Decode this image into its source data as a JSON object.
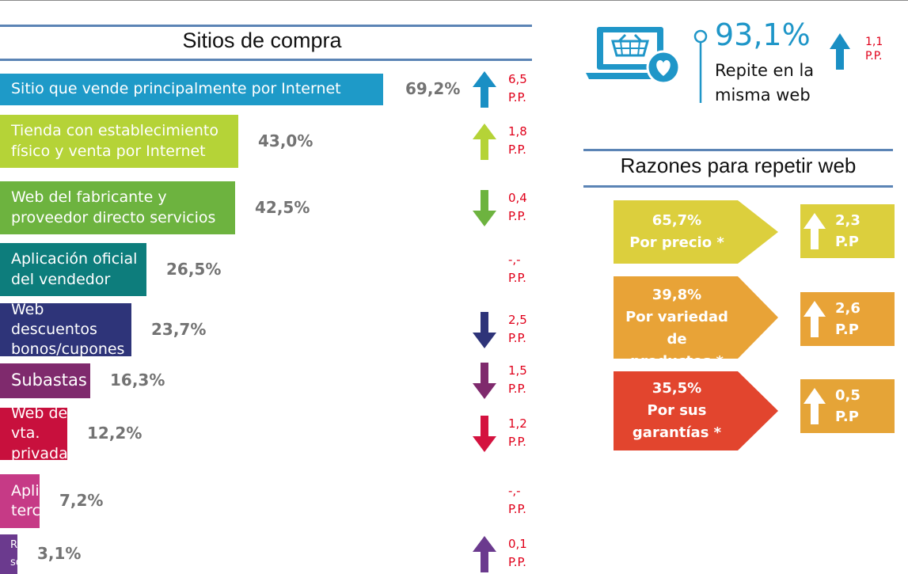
{
  "left_title": "Sitios de compra",
  "right_stat": {
    "value": "93,1%",
    "label_line1": "Repite en la",
    "label_line2": "misma web",
    "change_line1": "1,1",
    "change_line2": "P.P.",
    "icon": "laptop-shopping-heart-icon"
  },
  "reasons_title": "Razones para repetir web",
  "colors": {
    "rule": "#5b84b5",
    "change_text": "#e0001a",
    "pct_text": "#737373",
    "stat_accent": "#1f96c8"
  },
  "chart_data": [
    {
      "type": "bar",
      "orientation": "horizontal",
      "title": "Sitios de compra",
      "categories": [
        "Sitio que vende principalmente por Internet",
        "Tienda con establecimiento\nfísico y venta por Internet",
        "Web del fabricante y\nproveedor directo servicios",
        "Aplicación oficial\ndel vendedor",
        "Web descuentos\nbonos/cupones",
        "Subastas",
        "Web de vta.\nprivada",
        "Aplic.\nterceros",
        "R.\nsociales"
      ],
      "values": [
        69.2,
        43.0,
        42.5,
        26.5,
        23.7,
        16.3,
        12.2,
        7.2,
        3.1
      ],
      "value_labels": [
        "69,2%",
        "43,0%",
        "42,5%",
        "26,5%",
        "23,7%",
        "16,3%",
        "12,2%",
        "7,2%",
        "3,1%"
      ],
      "bar_colors": [
        "#1e9ac8",
        "#b5d337",
        "#6db33f",
        "#0d7d7c",
        "#2e3479",
        "#7f2a6d",
        "#c8103d",
        "#c63a86",
        "#6b3a8e"
      ],
      "changes": [
        {
          "value": "6,5",
          "unit": "P.P.",
          "direction": "up",
          "color": "#1a8fc4"
        },
        {
          "value": "1,8",
          "unit": "P.P.",
          "direction": "up",
          "color": "#b5d337"
        },
        {
          "value": "0,4",
          "unit": "P.P.",
          "direction": "down",
          "color": "#6db33f"
        },
        {
          "value": "-,-",
          "unit": "P.P.",
          "direction": "none",
          "color": ""
        },
        {
          "value": "2,5",
          "unit": "P.P.",
          "direction": "down",
          "color": "#2e3479"
        },
        {
          "value": "1,5",
          "unit": "P.P.",
          "direction": "down",
          "color": "#7f2a6d"
        },
        {
          "value": "1,2",
          "unit": "P.P.",
          "direction": "down",
          "color": "#d4123f"
        },
        {
          "value": "-,-",
          "unit": "P.P.",
          "direction": "none",
          "color": ""
        },
        {
          "value": "0,1",
          "unit": "P.P.",
          "direction": "up",
          "color": "#6b3a8e"
        }
      ]
    },
    {
      "type": "bar",
      "title": "Razones para repetir web",
      "categories": [
        "Por precio *",
        "Por variedad de productos *",
        "Por sus garantías *"
      ],
      "values": [
        65.7,
        39.8,
        35.5
      ],
      "value_labels": [
        "65,7%",
        "39,8%",
        "35,5%"
      ],
      "label_lines": [
        [
          "65,7%",
          "Por precio *"
        ],
        [
          "39,8%",
          "Por variedad de",
          "productos *"
        ],
        [
          "35,5%",
          "Por sus",
          "garantías *"
        ]
      ],
      "arrow_colors": [
        "#dccf3d",
        "#e8a337",
        "#e2452e"
      ],
      "changes": [
        {
          "value": "2,3",
          "unit": "P.P",
          "direction": "up",
          "color": "#dccf3d"
        },
        {
          "value": "2,6",
          "unit": "P.P",
          "direction": "up",
          "color": "#e8a337"
        },
        {
          "value": "0,5",
          "unit": "P.P",
          "direction": "up",
          "color": "#e5a437"
        }
      ]
    }
  ]
}
